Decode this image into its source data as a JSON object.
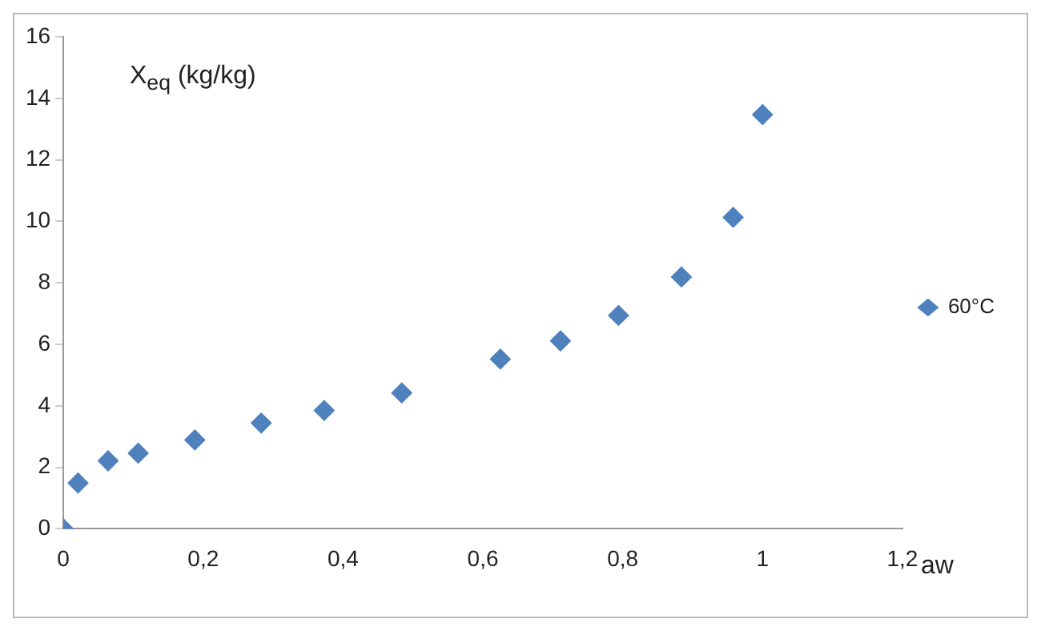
{
  "chart_data": {
    "type": "scatter",
    "xlabel": "aw",
    "ylabel": "X$_{eq}$ (kg/kg)",
    "x": [
      0,
      0.021,
      0.064,
      0.107,
      0.188,
      0.283,
      0.373,
      0.484,
      0.625,
      0.711,
      0.794,
      0.884,
      0.958,
      1.0
    ],
    "series": [
      {
        "name": "60°C",
        "color": "#4f81bd",
        "values": [
          0,
          1.49,
          2.21,
          2.46,
          2.89,
          3.44,
          3.85,
          4.42,
          5.52,
          6.11,
          6.94,
          8.19,
          10.13,
          13.47
        ]
      }
    ],
    "xlim": [
      0,
      1.2
    ],
    "xticks": [
      0,
      {
        "value": 0.2,
        "label": "0,2"
      },
      {
        "value": 0.4,
        "label": "0,4"
      },
      {
        "value": 0.6,
        "label": "0,6"
      },
      {
        "value": 0.8,
        "label": "0,8"
      },
      1,
      {
        "value": 1.2,
        "label": "1,2"
      }
    ],
    "ylim": [
      0,
      16
    ],
    "yticks": [
      0,
      2,
      4,
      6,
      8,
      10,
      12,
      14,
      16
    ],
    "grid": false,
    "legend": "right",
    "marker": "diamond"
  }
}
